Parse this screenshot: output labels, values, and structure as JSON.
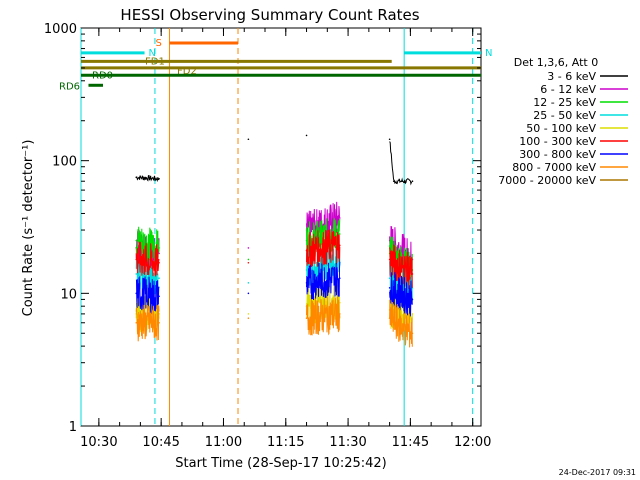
{
  "chart_data": {
    "type": "line",
    "title": "HESSI Observing Summary Count Rates",
    "xlabel": "Start Time (28-Sep-17 10:25:42)",
    "ylabel": "Count Rate (s⁻¹ detector⁻¹)",
    "y_scale": "log",
    "ylim": [
      1,
      1000
    ],
    "xlim": [
      "10:25:42",
      "12:02:00"
    ],
    "x_ticks": [
      "10:30",
      "10:45",
      "11:00",
      "11:15",
      "11:30",
      "11:45",
      "12:00"
    ],
    "y_ticks": [
      "1",
      "10",
      "100",
      "1000"
    ],
    "legend_title": "Det 1,3,6, Att 0",
    "legend_position": "right",
    "series": [
      {
        "name": "3 - 6 keV",
        "color": "#000000",
        "values": [
          {
            "x": "10:39:00",
            "y": 75
          },
          {
            "x": "10:44:30",
            "y": 73
          },
          {
            "x": "11:06:00",
            "y": 145
          },
          {
            "x": "11:20:00",
            "y": 155
          },
          {
            "x": "11:40:00",
            "y": 145
          },
          {
            "x": "11:41:00",
            "y": 70
          },
          {
            "x": "11:45:30",
            "y": 70
          }
        ]
      },
      {
        "name": "6 - 12 keV",
        "color": "#cc00cc",
        "values": [
          {
            "x": "10:39:00",
            "y": 22
          },
          {
            "x": "10:44:30",
            "y": 20
          },
          {
            "x": "11:06:00",
            "y": 22
          },
          {
            "x": "11:20:00",
            "y": 30
          },
          {
            "x": "11:28:00",
            "y": 37
          },
          {
            "x": "11:40:00",
            "y": 25
          },
          {
            "x": "11:45:30",
            "y": 18
          }
        ]
      },
      {
        "name": "12 - 25 keV",
        "color": "#00dd00",
        "values": [
          {
            "x": "10:39:00",
            "y": 25
          },
          {
            "x": "10:44:30",
            "y": 22
          },
          {
            "x": "11:06:00",
            "y": 18
          },
          {
            "x": "11:20:00",
            "y": 25
          },
          {
            "x": "11:28:00",
            "y": 28
          },
          {
            "x": "11:40:00",
            "y": 20
          },
          {
            "x": "11:45:30",
            "y": 15
          }
        ]
      },
      {
        "name": "25 - 50 keV",
        "color": "#00dddd",
        "values": [
          {
            "x": "10:39:00",
            "y": 14
          },
          {
            "x": "10:44:30",
            "y": 13
          },
          {
            "x": "11:06:00",
            "y": 12
          },
          {
            "x": "11:20:00",
            "y": 15
          },
          {
            "x": "11:28:00",
            "y": 17
          },
          {
            "x": "11:40:00",
            "y": 13
          },
          {
            "x": "11:45:30",
            "y": 11
          }
        ]
      },
      {
        "name": "50 - 100 keV",
        "color": "#dddd00",
        "values": [
          {
            "x": "10:39:00",
            "y": 7
          },
          {
            "x": "10:44:30",
            "y": 7
          },
          {
            "x": "11:06:00",
            "y": 7
          },
          {
            "x": "11:20:00",
            "y": 8
          },
          {
            "x": "11:28:00",
            "y": 8.5
          },
          {
            "x": "11:40:00",
            "y": 7.5
          },
          {
            "x": "11:45:30",
            "y": 7
          }
        ]
      },
      {
        "name": "100 - 300 keV",
        "color": "#ff0000",
        "values": [
          {
            "x": "10:39:00",
            "y": 18
          },
          {
            "x": "10:44:30",
            "y": 17
          },
          {
            "x": "11:06:00",
            "y": 17
          },
          {
            "x": "11:20:00",
            "y": 21
          },
          {
            "x": "11:28:00",
            "y": 23
          },
          {
            "x": "11:40:00",
            "y": 18
          },
          {
            "x": "11:45:30",
            "y": 14
          }
        ]
      },
      {
        "name": "300 - 800 keV",
        "color": "#0000ff",
        "values": [
          {
            "x": "10:39:00",
            "y": 10
          },
          {
            "x": "10:44:30",
            "y": 9.5
          },
          {
            "x": "11:06:00",
            "y": 10
          },
          {
            "x": "11:20:00",
            "y": 12
          },
          {
            "x": "11:28:00",
            "y": 13
          },
          {
            "x": "11:40:00",
            "y": 11
          },
          {
            "x": "11:45:30",
            "y": 9
          }
        ]
      },
      {
        "name": "800 - 7000 keV",
        "color": "#ff8800",
        "values": [
          {
            "x": "10:39:00",
            "y": 6
          },
          {
            "x": "10:44:30",
            "y": 6
          },
          {
            "x": "11:06:00",
            "y": 6.5
          },
          {
            "x": "11:20:00",
            "y": 6.5
          },
          {
            "x": "11:28:00",
            "y": 7
          },
          {
            "x": "11:40:00",
            "y": 6.5
          },
          {
            "x": "11:45:30",
            "y": 5
          }
        ]
      },
      {
        "name": "7000 - 20000 keV",
        "color": "#aa7700",
        "values": []
      }
    ],
    "flags": [
      {
        "name": "S",
        "color": "#ff6600",
        "start": "10:47:00",
        "end": "11:03:30",
        "level": 770
      },
      {
        "name": "N",
        "color": "#00dddd",
        "start": "10:25:42",
        "end": "10:41:00",
        "level": 650
      },
      {
        "name": "N",
        "color": "#00dddd",
        "start": "11:43:30",
        "end": "12:02:00",
        "level": 650
      },
      {
        "name": "FD1",
        "color": "#887700",
        "start": "10:25:42",
        "end": "11:40:30",
        "level": 560
      },
      {
        "name": "FD2",
        "color": "#887700",
        "start": "10:25:42",
        "end": "12:02:00",
        "level": 500
      },
      {
        "name": "RD0",
        "color": "#006600",
        "start": "10:25:42",
        "end": "12:02:00",
        "level": 440
      },
      {
        "name": "RD6",
        "color": "#006600",
        "start": "10:27:30",
        "end": "10:31:00",
        "level": 370
      }
    ],
    "vertical_markers": [
      {
        "x": "10:25:42",
        "color": "#00dddd",
        "style": "solid"
      },
      {
        "x": "10:43:30",
        "color": "#00dddd",
        "style": "dashed"
      },
      {
        "x": "10:47:00",
        "color": "#ff8800",
        "style": "solid"
      },
      {
        "x": "11:03:30",
        "color": "#ff8800",
        "style": "dashed"
      },
      {
        "x": "11:43:30",
        "color": "#00dddd",
        "style": "solid"
      },
      {
        "x": "12:00:00",
        "color": "#00dddd",
        "style": "dashed"
      }
    ]
  },
  "footer": {
    "timestamp": "24-Dec-2017 09:31"
  }
}
